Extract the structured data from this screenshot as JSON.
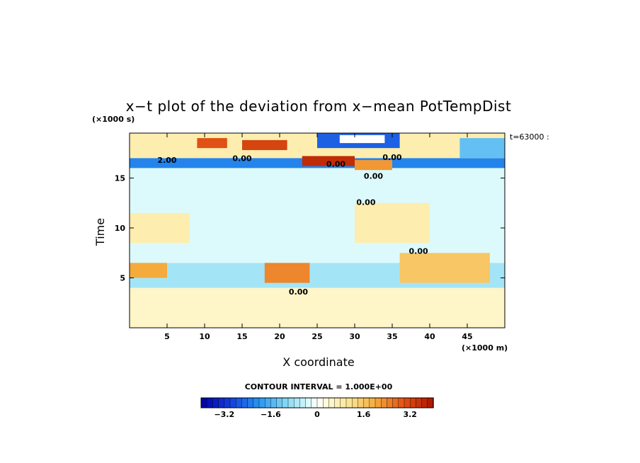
{
  "chart_data": {
    "type": "heatmap",
    "title": "x−t plot of the deviation from x−mean PotTempDist",
    "xlabel": "X coordinate",
    "ylabel": "Time",
    "x_unit": "(×1000 m)",
    "y_unit": "(×1000 s)",
    "time_tag": "t=63000 :",
    "xlim": [
      0,
      50
    ],
    "ylim": [
      0,
      19.5
    ],
    "x_ticks": [
      5,
      10,
      15,
      20,
      25,
      30,
      35,
      40,
      45
    ],
    "y_ticks": [
      5,
      10,
      15
    ],
    "contour_interval_label": "CONTOUR INTERVAL = 1.000E+00",
    "contour_labels": [
      {
        "text": "2.00",
        "x": 5.0,
        "y": 16.8
      },
      {
        "text": "0.00",
        "x": 15.0,
        "y": 17.0
      },
      {
        "text": "0.00",
        "x": 27.5,
        "y": 16.4
      },
      {
        "text": "0.00",
        "x": 35.0,
        "y": 17.1
      },
      {
        "text": "0.00",
        "x": 32.5,
        "y": 15.2
      },
      {
        "text": "0.00",
        "x": 31.5,
        "y": 12.6
      },
      {
        "text": "0.00",
        "x": 38.5,
        "y": 7.7
      },
      {
        "text": "0.00",
        "x": 22.5,
        "y": 3.6
      }
    ],
    "colorbar": {
      "min": -4.0,
      "max": 4.0,
      "ticks": [
        "−3.2",
        "−1.6",
        "0",
        "1.6",
        "3.2"
      ],
      "tick_values": [
        -3.2,
        -1.6,
        0,
        1.6,
        3.2
      ]
    },
    "regions": [
      {
        "x0": 0,
        "x1": 50,
        "y0": 0,
        "y1": 4.0,
        "value": 0.5
      },
      {
        "x0": 0,
        "x1": 50,
        "y0": 4.0,
        "y1": 6.5,
        "value": -0.8
      },
      {
        "x0": 0,
        "x1": 50,
        "y0": 6.5,
        "y1": 16.0,
        "value": -0.3
      },
      {
        "x0": 0,
        "x1": 50,
        "y0": 16.0,
        "y1": 17.0,
        "value": -2.2
      },
      {
        "x0": 0,
        "x1": 50,
        "y0": 17.0,
        "y1": 19.5,
        "value": 0.8
      },
      {
        "x0": 25,
        "x1": 36,
        "y0": 18.0,
        "y1": 19.5,
        "value": -2.6
      },
      {
        "x0": 28,
        "x1": 34,
        "y0": 18.5,
        "y1": 19.3,
        "value": 0.0
      },
      {
        "x0": 9,
        "x1": 13,
        "y0": 18.0,
        "y1": 19.0,
        "value": 3.0
      },
      {
        "x0": 15,
        "x1": 21,
        "y0": 17.8,
        "y1": 18.8,
        "value": 3.2
      },
      {
        "x0": 23,
        "x1": 30,
        "y0": 16.2,
        "y1": 17.2,
        "value": 3.6
      },
      {
        "x0": 30,
        "x1": 35,
        "y0": 15.8,
        "y1": 16.8,
        "value": 2.2
      },
      {
        "x0": 0,
        "x1": 5,
        "y0": 5.0,
        "y1": 6.5,
        "value": 2.0
      },
      {
        "x0": 18,
        "x1": 24,
        "y0": 4.5,
        "y1": 6.5,
        "value": 2.4
      },
      {
        "x0": 36,
        "x1": 48,
        "y0": 4.5,
        "y1": 7.5,
        "value": 1.6
      },
      {
        "x0": 30,
        "x1": 40,
        "y0": 8.5,
        "y1": 12.5,
        "value": 0.8
      },
      {
        "x0": 0,
        "x1": 8,
        "y0": 8.5,
        "y1": 11.5,
        "value": 0.8
      },
      {
        "x0": 44,
        "x1": 50,
        "y0": 17.0,
        "y1": 19.0,
        "value": -1.4
      }
    ]
  }
}
